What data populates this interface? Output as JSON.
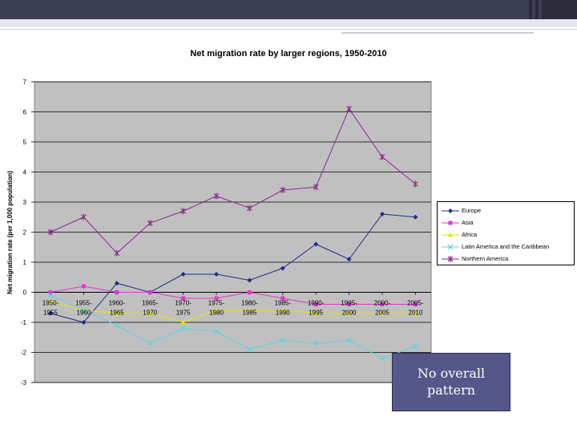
{
  "slide": {
    "callout_text": "No overall\npattern"
  },
  "chart_data": {
    "type": "line",
    "title": "Net migration rate by larger regions, 1950-2010",
    "ylabel": "Net migration rate (per 1,000 population)",
    "xlabel": "",
    "ylim": [
      -3,
      7
    ],
    "yticks": [
      7,
      6,
      5,
      4,
      3,
      2,
      1,
      0,
      -1,
      -2,
      -3
    ],
    "ytick_labels": [
      "7",
      "6",
      "5",
      "4",
      "3",
      "2",
      "1",
      "0",
      "-1",
      "-2",
      "-3"
    ],
    "grid": true,
    "legend_position": "right",
    "categories": [
      "1950-1955",
      "1955-1960",
      "1960-1965",
      "1965-1970",
      "1970-1975",
      "1975-1980",
      "1980-1985",
      "1985-1990",
      "1990-1995",
      "1995-2000",
      "2000-2005",
      "2005-2010"
    ],
    "category_lines": [
      [
        "1950-",
        "1955"
      ],
      [
        "1955-",
        "1960"
      ],
      [
        "1960-",
        "1965"
      ],
      [
        "1965-",
        "1970"
      ],
      [
        "1970-",
        "1975"
      ],
      [
        "1975-",
        "1980"
      ],
      [
        "1980-",
        "1985"
      ],
      [
        "1985-",
        "1990"
      ],
      [
        "1990-",
        "1995"
      ],
      [
        "1995-",
        "2000"
      ],
      [
        "2000-",
        "2005"
      ],
      [
        "2005-",
        "2010"
      ]
    ],
    "series": [
      {
        "name": "Europe",
        "color": "#1f2d8a",
        "marker": "diamond",
        "values": [
          -0.7,
          -1.0,
          0.3,
          0.0,
          0.6,
          0.6,
          0.4,
          0.8,
          1.6,
          1.1,
          2.6,
          2.5
        ]
      },
      {
        "name": "Asia",
        "color": "#e633d8",
        "marker": "square",
        "values": [
          0.0,
          0.2,
          0.0,
          0.0,
          -0.2,
          -0.2,
          0.0,
          -0.2,
          -0.4,
          -0.4,
          -0.4,
          -0.4
        ]
      },
      {
        "name": "Africa",
        "color": "#e6e600",
        "marker": "triangle",
        "values": [
          -0.3,
          -0.6,
          -0.7,
          -0.7,
          -1.0,
          -0.6,
          -0.6,
          -0.6,
          -0.7,
          -0.7,
          -0.7,
          -0.7
        ]
      },
      {
        "name": "Latin America and the Caribbean",
        "color": "#55d4e4",
        "marker": "x",
        "values": [
          -0.1,
          -0.6,
          -1.1,
          -1.7,
          -1.2,
          -1.3,
          -1.9,
          -1.6,
          -1.7,
          -1.6,
          -2.2,
          -1.8
        ]
      },
      {
        "name": "Northern America",
        "color": "#8a2a8a",
        "marker": "star",
        "values": [
          2.0,
          2.5,
          1.3,
          2.3,
          2.7,
          3.2,
          2.8,
          3.4,
          3.5,
          6.1,
          4.5,
          3.6
        ]
      }
    ]
  }
}
